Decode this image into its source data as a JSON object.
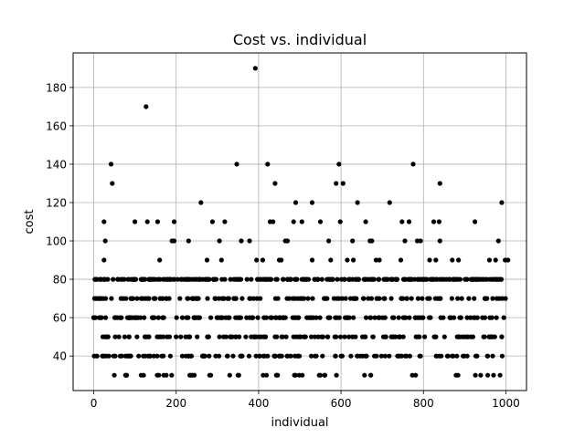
{
  "chart_data": {
    "type": "scatter",
    "title": "Cost vs. individual",
    "xlabel": "individual",
    "ylabel": "cost",
    "xlim": [
      -50,
      1050
    ],
    "ylim": [
      22,
      198
    ],
    "xticks": [
      0,
      200,
      400,
      600,
      800,
      1000
    ],
    "yticks": [
      40,
      60,
      80,
      100,
      120,
      140,
      160,
      180
    ],
    "grid": true,
    "marker_color": "#000000",
    "outlier_points": [
      [
        127,
        170
      ],
      [
        392,
        190
      ],
      [
        42,
        140
      ],
      [
        347,
        140
      ],
      [
        422,
        140
      ],
      [
        595,
        140
      ],
      [
        775,
        140
      ],
      [
        45,
        130
      ],
      [
        440,
        130
      ],
      [
        588,
        130
      ],
      [
        605,
        130
      ],
      [
        840,
        130
      ],
      [
        260,
        120
      ],
      [
        490,
        120
      ],
      [
        530,
        120
      ],
      [
        640,
        120
      ],
      [
        718,
        120
      ],
      [
        990,
        120
      ],
      [
        25,
        110
      ],
      [
        100,
        110
      ],
      [
        130,
        110
      ],
      [
        155,
        110
      ],
      [
        195,
        110
      ],
      [
        288,
        110
      ],
      [
        318,
        110
      ],
      [
        428,
        110
      ],
      [
        435,
        110
      ],
      [
        485,
        110
      ],
      [
        505,
        110
      ],
      [
        550,
        110
      ],
      [
        598,
        110
      ],
      [
        660,
        110
      ],
      [
        748,
        110
      ],
      [
        765,
        110
      ],
      [
        825,
        110
      ],
      [
        838,
        110
      ],
      [
        925,
        110
      ],
      [
        28,
        100
      ],
      [
        190,
        100
      ],
      [
        195,
        100
      ],
      [
        230,
        100
      ],
      [
        305,
        100
      ],
      [
        358,
        100
      ],
      [
        378,
        100
      ],
      [
        465,
        100
      ],
      [
        470,
        100
      ],
      [
        570,
        100
      ],
      [
        628,
        100
      ],
      [
        670,
        100
      ],
      [
        675,
        100
      ],
      [
        755,
        100
      ],
      [
        785,
        100
      ],
      [
        793,
        100
      ],
      [
        840,
        100
      ],
      [
        982,
        100
      ],
      [
        25,
        90
      ],
      [
        160,
        90
      ],
      [
        275,
        90
      ],
      [
        310,
        90
      ],
      [
        395,
        90
      ],
      [
        410,
        90
      ],
      [
        450,
        90
      ],
      [
        455,
        90
      ],
      [
        530,
        90
      ],
      [
        575,
        90
      ],
      [
        615,
        90
      ],
      [
        630,
        90
      ],
      [
        685,
        90
      ],
      [
        693,
        90
      ],
      [
        745,
        90
      ],
      [
        815,
        90
      ],
      [
        830,
        90
      ],
      [
        870,
        90
      ],
      [
        885,
        90
      ],
      [
        960,
        90
      ],
      [
        975,
        90
      ],
      [
        998,
        90
      ],
      [
        1005,
        90
      ]
    ],
    "grid_points": {
      "description": "Dense bands of points at costs 30–80 spanning individuals 0–1000",
      "levels": [
        30,
        40,
        50,
        60,
        70,
        80
      ],
      "count_per_level": [
        46,
        120,
        120,
        150,
        130,
        270
      ]
    }
  }
}
